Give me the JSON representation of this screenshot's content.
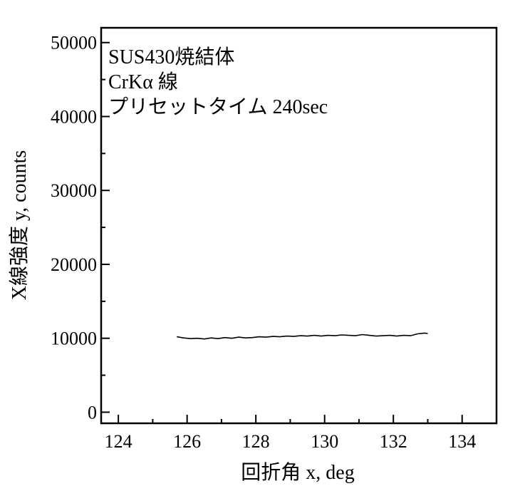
{
  "chart_data": {
    "type": "line",
    "xlabel": "回折角 x, deg",
    "ylabel": "X線強度 y, counts",
    "xlim": [
      123.5,
      135
    ],
    "ylim": [
      -1500,
      52000
    ],
    "x_ticks": [
      124,
      126,
      128,
      130,
      132,
      134
    ],
    "y_ticks": [
      0,
      10000,
      20000,
      30000,
      40000,
      50000
    ],
    "x_tick_labels": [
      "124",
      "126",
      "128",
      "130",
      "132",
      "134"
    ],
    "y_tick_labels": [
      "0",
      "10000",
      "20000",
      "30000",
      "40000",
      "50000"
    ],
    "grid": false,
    "annotations": [
      "SUS430焼結体",
      "CrKα 線",
      "プリセットタイム 240sec"
    ],
    "series": [
      {
        "color": "#000000",
        "x": [
          125.7,
          125.9,
          126.1,
          126.3,
          126.5,
          126.7,
          126.9,
          127.1,
          127.3,
          127.5,
          127.7,
          127.9,
          128.1,
          128.3,
          128.5,
          128.7,
          128.9,
          129.1,
          129.3,
          129.5,
          129.7,
          129.9,
          130.1,
          130.3,
          130.5,
          130.7,
          130.9,
          131.1,
          131.3,
          131.5,
          131.7,
          131.9,
          132.1,
          132.3,
          132.5,
          132.7,
          132.9,
          133.0
        ],
        "y": [
          10200,
          10050,
          9950,
          10000,
          9900,
          10050,
          9950,
          10100,
          10000,
          10150,
          10050,
          10100,
          10200,
          10150,
          10250,
          10200,
          10300,
          10250,
          10350,
          10300,
          10400,
          10300,
          10400,
          10350,
          10450,
          10400,
          10350,
          10500,
          10400,
          10300,
          10350,
          10400,
          10300,
          10400,
          10350,
          10600,
          10700,
          10650
        ]
      }
    ]
  }
}
